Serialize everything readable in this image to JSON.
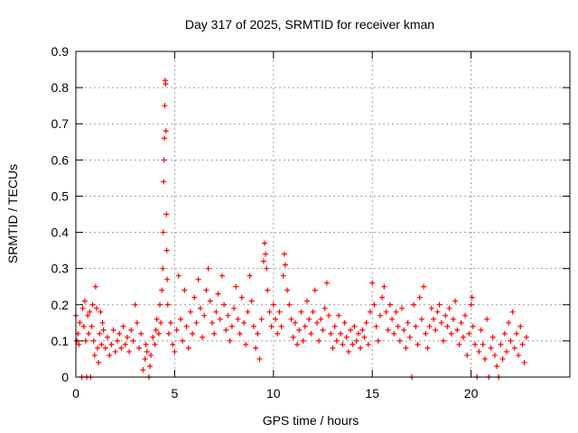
{
  "chart_data": {
    "type": "scatter",
    "title": "Day 317 of 2025, SRMTID for receiver kman",
    "xlabel": "GPS time / hours",
    "ylabel": "SRMTID / TECUs",
    "xlim": [
      0,
      25
    ],
    "ylim": [
      0,
      0.9
    ],
    "x_ticks": [
      0,
      5,
      10,
      15,
      20
    ],
    "x_tick_labels": [
      "0",
      "5",
      "10",
      "15",
      "20"
    ],
    "y_ticks": [
      0,
      0.1,
      0.2,
      0.3,
      0.4,
      0.5,
      0.6,
      0.7,
      0.8,
      0.9
    ],
    "y_tick_labels": [
      "0",
      "0.1",
      "0.2",
      "0.3",
      "0.4",
      "0.5",
      "0.6",
      "0.7",
      "0.8",
      "0.9"
    ],
    "grid": true,
    "marker": "plus",
    "color": "#ff0000",
    "series": [
      {
        "name": "SRMTID",
        "points": [
          [
            0.0,
            0.17
          ],
          [
            0.05,
            0.1
          ],
          [
            0.1,
            0.12
          ],
          [
            0.15,
            0.09
          ],
          [
            0.2,
            0.15
          ],
          [
            0.3,
            0.0
          ],
          [
            0.35,
            0.19
          ],
          [
            0.4,
            0.14
          ],
          [
            0.45,
            0.21
          ],
          [
            0.5,
            0.1
          ],
          [
            0.55,
            0.0
          ],
          [
            0.6,
            0.17
          ],
          [
            0.65,
            0.12
          ],
          [
            0.7,
            0.18
          ],
          [
            0.75,
            0.0
          ],
          [
            0.8,
            0.14
          ],
          [
            0.85,
            0.2
          ],
          [
            0.9,
            0.1
          ],
          [
            0.95,
            0.06
          ],
          [
            1.0,
            0.25
          ],
          [
            1.05,
            0.19
          ],
          [
            1.1,
            0.08
          ],
          [
            1.15,
            0.04
          ],
          [
            1.2,
            0.12
          ],
          [
            1.25,
            0.18
          ],
          [
            1.3,
            0.09
          ],
          [
            1.35,
            0.15
          ],
          [
            1.4,
            0.13
          ],
          [
            1.5,
            0.08
          ],
          [
            1.6,
            0.11
          ],
          [
            1.7,
            0.06
          ],
          [
            1.8,
            0.09
          ],
          [
            1.9,
            0.13
          ],
          [
            2.0,
            0.07
          ],
          [
            2.1,
            0.1
          ],
          [
            2.2,
            0.12
          ],
          [
            2.3,
            0.08
          ],
          [
            2.4,
            0.14
          ],
          [
            2.5,
            0.09
          ],
          [
            2.6,
            0.11
          ],
          [
            2.7,
            0.07
          ],
          [
            2.8,
            0.13
          ],
          [
            2.9,
            0.1
          ],
          [
            3.0,
            0.2
          ],
          [
            3.1,
            0.15
          ],
          [
            3.2,
            0.08
          ],
          [
            3.3,
            0.12
          ],
          [
            3.4,
            0.02
          ],
          [
            3.5,
            0.05
          ],
          [
            3.55,
            0.09
          ],
          [
            3.6,
            0.07
          ],
          [
            3.7,
            0.0
          ],
          [
            3.75,
            0.03
          ],
          [
            3.8,
            0.06
          ],
          [
            3.9,
            0.11
          ],
          [
            4.0,
            0.09
          ],
          [
            4.05,
            0.13
          ],
          [
            4.1,
            0.16
          ],
          [
            4.2,
            0.12
          ],
          [
            4.25,
            0.2
          ],
          [
            4.3,
            0.15
          ],
          [
            4.35,
            0.24
          ],
          [
            4.4,
            0.3
          ],
          [
            4.42,
            0.4
          ],
          [
            4.44,
            0.54
          ],
          [
            4.46,
            0.6
          ],
          [
            4.48,
            0.66
          ],
          [
            4.5,
            0.75
          ],
          [
            4.52,
            0.82
          ],
          [
            4.54,
            0.81
          ],
          [
            4.56,
            0.68
          ],
          [
            4.58,
            0.45
          ],
          [
            4.6,
            0.35
          ],
          [
            4.62,
            0.27
          ],
          [
            4.65,
            0.2
          ],
          [
            4.7,
            0.12
          ],
          [
            4.8,
            0.15
          ],
          [
            4.9,
            0.09
          ],
          [
            5.0,
            0.07
          ],
          [
            5.1,
            0.13
          ],
          [
            5.2,
            0.28
          ],
          [
            5.3,
            0.16
          ],
          [
            5.4,
            0.1
          ],
          [
            5.5,
            0.24
          ],
          [
            5.6,
            0.14
          ],
          [
            5.7,
            0.08
          ],
          [
            5.8,
            0.18
          ],
          [
            5.9,
            0.12
          ],
          [
            6.0,
            0.22
          ],
          [
            6.1,
            0.15
          ],
          [
            6.2,
            0.27
          ],
          [
            6.3,
            0.19
          ],
          [
            6.4,
            0.11
          ],
          [
            6.5,
            0.17
          ],
          [
            6.6,
            0.24
          ],
          [
            6.7,
            0.3
          ],
          [
            6.8,
            0.21
          ],
          [
            6.9,
            0.15
          ],
          [
            7.0,
            0.12
          ],
          [
            7.1,
            0.18
          ],
          [
            7.2,
            0.23
          ],
          [
            7.3,
            0.16
          ],
          [
            7.4,
            0.28
          ],
          [
            7.5,
            0.2
          ],
          [
            7.6,
            0.13
          ],
          [
            7.7,
            0.17
          ],
          [
            7.8,
            0.1
          ],
          [
            7.9,
            0.14
          ],
          [
            8.0,
            0.19
          ],
          [
            8.1,
            0.25
          ],
          [
            8.2,
            0.16
          ],
          [
            8.3,
            0.12
          ],
          [
            8.4,
            0.22
          ],
          [
            8.5,
            0.15
          ],
          [
            8.6,
            0.09
          ],
          [
            8.7,
            0.18
          ],
          [
            8.8,
            0.28
          ],
          [
            8.9,
            0.21
          ],
          [
            9.0,
            0.14
          ],
          [
            9.1,
            0.08
          ],
          [
            9.2,
            0.12
          ],
          [
            9.3,
            0.05
          ],
          [
            9.4,
            0.16
          ],
          [
            9.5,
            0.32
          ],
          [
            9.55,
            0.37
          ],
          [
            9.6,
            0.34
          ],
          [
            9.65,
            0.3
          ],
          [
            9.7,
            0.24
          ],
          [
            9.8,
            0.18
          ],
          [
            9.9,
            0.14
          ],
          [
            10.0,
            0.2
          ],
          [
            10.1,
            0.16
          ],
          [
            10.2,
            0.12
          ],
          [
            10.3,
            0.18
          ],
          [
            10.4,
            0.14
          ],
          [
            10.5,
            0.28
          ],
          [
            10.55,
            0.34
          ],
          [
            10.6,
            0.31
          ],
          [
            10.7,
            0.24
          ],
          [
            10.8,
            0.2
          ],
          [
            10.9,
            0.16
          ],
          [
            11.0,
            0.11
          ],
          [
            11.1,
            0.15
          ],
          [
            11.2,
            0.09
          ],
          [
            11.3,
            0.13
          ],
          [
            11.4,
            0.18
          ],
          [
            11.5,
            0.1
          ],
          [
            11.6,
            0.14
          ],
          [
            11.7,
            0.21
          ],
          [
            11.8,
            0.16
          ],
          [
            11.9,
            0.12
          ],
          [
            12.0,
            0.18
          ],
          [
            12.1,
            0.24
          ],
          [
            12.2,
            0.15
          ],
          [
            12.3,
            0.1
          ],
          [
            12.4,
            0.16
          ],
          [
            12.5,
            0.13
          ],
          [
            12.6,
            0.19
          ],
          [
            12.7,
            0.26
          ],
          [
            12.8,
            0.17
          ],
          [
            12.9,
            0.12
          ],
          [
            13.0,
            0.08
          ],
          [
            13.1,
            0.14
          ],
          [
            13.2,
            0.1
          ],
          [
            13.3,
            0.17
          ],
          [
            13.4,
            0.12
          ],
          [
            13.5,
            0.09
          ],
          [
            13.6,
            0.15
          ],
          [
            13.7,
            0.11
          ],
          [
            13.8,
            0.07
          ],
          [
            13.9,
            0.13
          ],
          [
            14.0,
            0.09
          ],
          [
            14.1,
            0.14
          ],
          [
            14.2,
            0.1
          ],
          [
            14.3,
            0.12
          ],
          [
            14.4,
            0.08
          ],
          [
            14.5,
            0.13
          ],
          [
            14.6,
            0.11
          ],
          [
            14.7,
            0.15
          ],
          [
            14.8,
            0.09
          ],
          [
            14.9,
            0.18
          ],
          [
            15.0,
            0.26
          ],
          [
            15.1,
            0.2
          ],
          [
            15.2,
            0.14
          ],
          [
            15.3,
            0.1
          ],
          [
            15.4,
            0.17
          ],
          [
            15.5,
            0.22
          ],
          [
            15.6,
            0.25
          ],
          [
            15.7,
            0.18
          ],
          [
            15.8,
            0.13
          ],
          [
            15.9,
            0.2
          ],
          [
            16.0,
            0.16
          ],
          [
            16.1,
            0.12
          ],
          [
            16.2,
            0.18
          ],
          [
            16.3,
            0.14
          ],
          [
            16.4,
            0.1
          ],
          [
            16.5,
            0.19
          ],
          [
            16.6,
            0.13
          ],
          [
            16.7,
            0.08
          ],
          [
            16.8,
            0.15
          ],
          [
            16.9,
            0.11
          ],
          [
            17.0,
            0.0
          ],
          [
            17.1,
            0.2
          ],
          [
            17.2,
            0.14
          ],
          [
            17.3,
            0.09
          ],
          [
            17.4,
            0.22
          ],
          [
            17.5,
            0.16
          ],
          [
            17.6,
            0.25
          ],
          [
            17.7,
            0.12
          ],
          [
            17.8,
            0.08
          ],
          [
            17.9,
            0.14
          ],
          [
            18.0,
            0.19
          ],
          [
            18.1,
            0.16
          ],
          [
            18.2,
            0.13
          ],
          [
            18.3,
            0.18
          ],
          [
            18.4,
            0.2
          ],
          [
            18.5,
            0.15
          ],
          [
            18.6,
            0.1
          ],
          [
            18.7,
            0.17
          ],
          [
            18.8,
            0.14
          ],
          [
            18.9,
            0.19
          ],
          [
            19.0,
            0.12
          ],
          [
            19.1,
            0.16
          ],
          [
            19.2,
            0.21
          ],
          [
            19.3,
            0.13
          ],
          [
            19.4,
            0.09
          ],
          [
            19.5,
            0.15
          ],
          [
            19.6,
            0.11
          ],
          [
            19.7,
            0.17
          ],
          [
            19.8,
            0.06
          ],
          [
            19.9,
            0.12
          ],
          [
            20.0,
            0.2
          ],
          [
            20.05,
            0.22
          ],
          [
            20.1,
            0.14
          ],
          [
            20.2,
            0.09
          ],
          [
            20.3,
            0.0
          ],
          [
            20.4,
            0.07
          ],
          [
            20.5,
            0.13
          ],
          [
            20.6,
            0.09
          ],
          [
            20.7,
            0.05
          ],
          [
            20.8,
            0.16
          ],
          [
            20.9,
            0.0
          ],
          [
            21.0,
            0.08
          ],
          [
            21.1,
            0.11
          ],
          [
            21.2,
            0.06
          ],
          [
            21.3,
            0.03
          ],
          [
            21.4,
            0.0
          ],
          [
            21.5,
            0.09
          ],
          [
            21.6,
            0.05
          ],
          [
            21.7,
            0.12
          ],
          [
            21.8,
            0.07
          ],
          [
            21.9,
            0.15
          ],
          [
            22.0,
            0.1
          ],
          [
            22.1,
            0.18
          ],
          [
            22.2,
            0.08
          ],
          [
            22.3,
            0.12
          ],
          [
            22.4,
            0.06
          ],
          [
            22.5,
            0.14
          ],
          [
            22.6,
            0.09
          ],
          [
            22.7,
            0.04
          ],
          [
            22.8,
            0.11
          ]
        ]
      }
    ]
  }
}
